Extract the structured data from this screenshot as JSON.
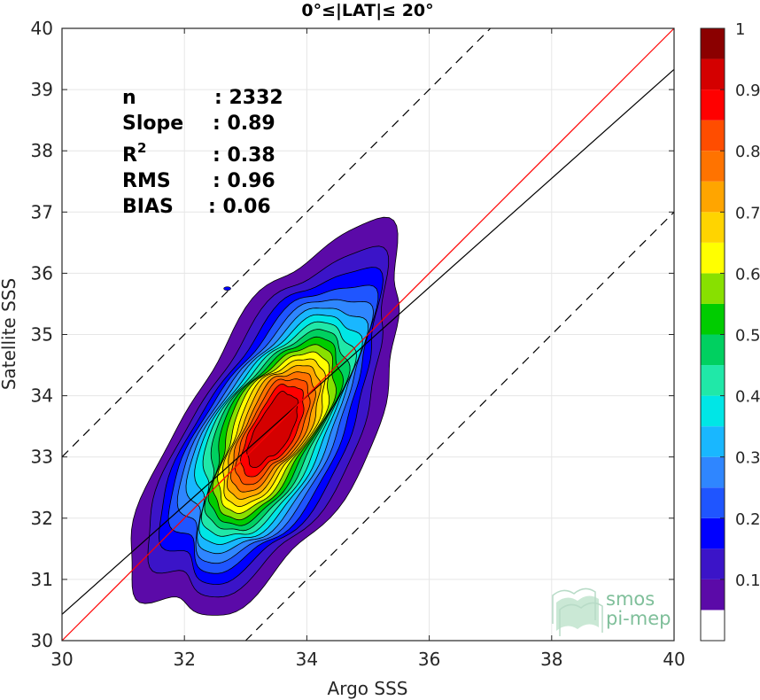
{
  "chart_data": {
    "type": "contour",
    "title": "0°≤|LAT|≤ 20°",
    "xlabel": "Argo SSS",
    "ylabel": "Satellite SSS",
    "xlim": [
      30,
      40
    ],
    "ylim": [
      30,
      40
    ],
    "xticks": [
      "30",
      "32",
      "34",
      "36",
      "38",
      "40"
    ],
    "yticks": [
      "30",
      "31",
      "32",
      "33",
      "34",
      "35",
      "36",
      "37",
      "38",
      "39",
      "40"
    ],
    "grid": true,
    "stats": [
      {
        "label": "n",
        "value": ": 2332"
      },
      {
        "label": "Slope",
        "value": ": 0.89"
      },
      {
        "label": "R",
        "sup": "2",
        "value": ": 0.38"
      },
      {
        "label": "RMS",
        "value": ": 0.96"
      },
      {
        "label": "BIAS",
        "value": ": 0.06"
      }
    ],
    "lines": {
      "one_to_one": {
        "slope": 1,
        "intercept": 0,
        "color": "#ff0000"
      },
      "regression": {
        "slope": 0.89,
        "intercept_at_30": 30.43,
        "color": "#000000"
      },
      "offset_lines": {
        "offset": 3,
        "style": "dashed",
        "color": "#000000"
      }
    },
    "density": {
      "peak": [
        33.45,
        33.45
      ],
      "sigma_major": 1.45,
      "sigma_minor": 0.6,
      "axis_angle_deg": 60,
      "support_levels": [
        0.05,
        0.1,
        0.15,
        0.2,
        0.25,
        0.3,
        0.35,
        0.4,
        0.45,
        0.5,
        0.55,
        0.6,
        0.65,
        0.7,
        0.75,
        0.8,
        0.85,
        0.9
      ]
    },
    "colorbar": {
      "ticks": [
        "0.1",
        "0.2",
        "0.3",
        "0.4",
        "0.5",
        "0.6",
        "0.7",
        "0.8",
        "0.9",
        "1"
      ],
      "levels": [
        0,
        0.05,
        0.1,
        0.15,
        0.2,
        0.25,
        0.3,
        0.35,
        0.4,
        0.45,
        0.5,
        0.55,
        0.6,
        0.65,
        0.7,
        0.75,
        0.8,
        0.85,
        0.9,
        0.95,
        1
      ],
      "colors": [
        "#ffffff",
        "#5b0aa8",
        "#3b14c8",
        "#0000ff",
        "#1f55ff",
        "#2f86ff",
        "#19b7ff",
        "#00e6e6",
        "#20e8a8",
        "#00d060",
        "#00cc00",
        "#88e000",
        "#ffff00",
        "#ffd400",
        "#ffa500",
        "#ff7300",
        "#ff4d00",
        "#ff0000",
        "#d40000",
        "#8b0000"
      ]
    }
  },
  "logo": {
    "line1": "smos",
    "line2": "pi-mep"
  }
}
